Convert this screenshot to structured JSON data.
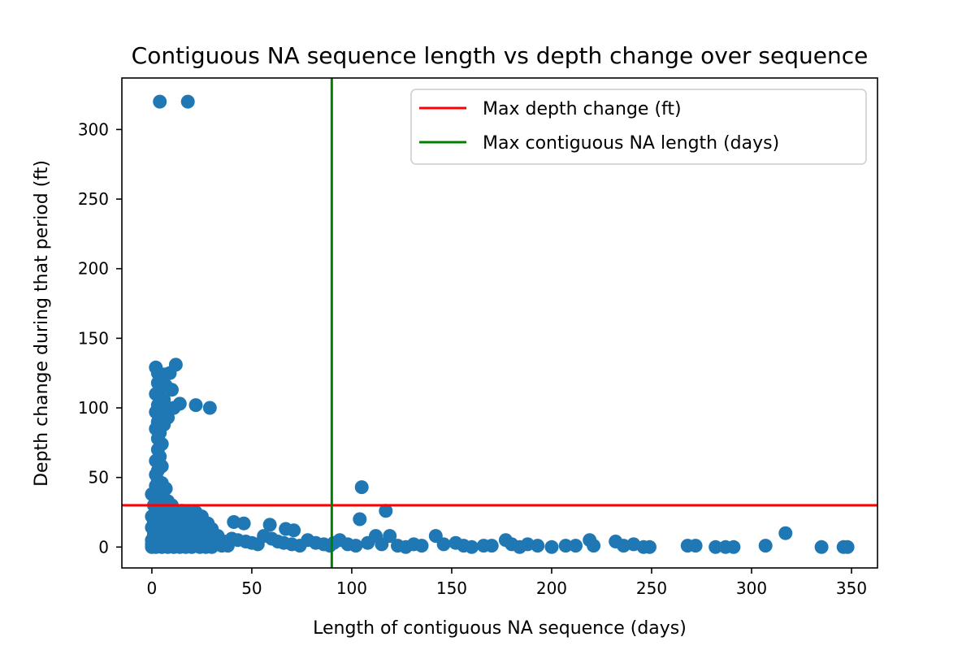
{
  "chart_data": {
    "type": "scatter",
    "title": "Contiguous NA sequence length vs depth change over sequence",
    "xlabel": "Length of contiguous NA sequence (days)",
    "ylabel": "Depth change during that period (ft)",
    "xlim": [
      -15,
      363
    ],
    "ylim": [
      -15,
      337
    ],
    "xticks": [
      0,
      50,
      100,
      150,
      200,
      250,
      300,
      350
    ],
    "yticks": [
      0,
      50,
      100,
      150,
      200,
      250,
      300
    ],
    "grid": false,
    "legend_position": "top-right",
    "colors": {
      "points": "#1f77b4",
      "hline": "#ff0000",
      "vline": "#008000"
    },
    "reference_lines": [
      {
        "orientation": "horizontal",
        "value": 30,
        "label": "Max depth change (ft)",
        "color": "#ff0000"
      },
      {
        "orientation": "vertical",
        "value": 90,
        "label": "Max contiguous NA length (days)",
        "color": "#008000"
      }
    ],
    "series": [
      {
        "points": [
          [
            4,
            320
          ],
          [
            18,
            320
          ],
          [
            2,
            129
          ],
          [
            12,
            131
          ],
          [
            3,
            125
          ],
          [
            6,
            124
          ],
          [
            9,
            125
          ],
          [
            3,
            118
          ],
          [
            7,
            116
          ],
          [
            10,
            113
          ],
          [
            2,
            110
          ],
          [
            4,
            108
          ],
          [
            6,
            106
          ],
          [
            3,
            102
          ],
          [
            8,
            100
          ],
          [
            11,
            100
          ],
          [
            14,
            103
          ],
          [
            22,
            102
          ],
          [
            29,
            100
          ],
          [
            2,
            97
          ],
          [
            5,
            96
          ],
          [
            8,
            93
          ],
          [
            3,
            90
          ],
          [
            6,
            88
          ],
          [
            2,
            85
          ],
          [
            4,
            82
          ],
          [
            3,
            78
          ],
          [
            5,
            74
          ],
          [
            3,
            70
          ],
          [
            4,
            65
          ],
          [
            2,
            62
          ],
          [
            5,
            58
          ],
          [
            3,
            55
          ],
          [
            2,
            52
          ],
          [
            3,
            48
          ],
          [
            5,
            46
          ],
          [
            2,
            44
          ],
          [
            7,
            42
          ],
          [
            4,
            40
          ],
          [
            3,
            36
          ],
          [
            5,
            34
          ],
          [
            8,
            33
          ],
          [
            10,
            30
          ],
          [
            2,
            28
          ],
          [
            6,
            27
          ],
          [
            12,
            26
          ],
          [
            15,
            26
          ],
          [
            18,
            25
          ],
          [
            22,
            25
          ],
          [
            3,
            24
          ],
          [
            9,
            23
          ],
          [
            13,
            22
          ],
          [
            20,
            22
          ],
          [
            25,
            22
          ],
          [
            1,
            20
          ],
          [
            4,
            20
          ],
          [
            7,
            19
          ],
          [
            11,
            18
          ],
          [
            16,
            18
          ],
          [
            19,
            18
          ],
          [
            24,
            17
          ],
          [
            28,
            17
          ],
          [
            2,
            16
          ],
          [
            5,
            15
          ],
          [
            9,
            15
          ],
          [
            14,
            15
          ],
          [
            18,
            14
          ],
          [
            22,
            14
          ],
          [
            26,
            13
          ],
          [
            30,
            13
          ],
          [
            1,
            12
          ],
          [
            3,
            11
          ],
          [
            6,
            11
          ],
          [
            10,
            10
          ],
          [
            13,
            10
          ],
          [
            17,
            10
          ],
          [
            21,
            9
          ],
          [
            25,
            9
          ],
          [
            29,
            8
          ],
          [
            33,
            8
          ],
          [
            1,
            7
          ],
          [
            4,
            6
          ],
          [
            8,
            6
          ],
          [
            12,
            6
          ],
          [
            16,
            5
          ],
          [
            20,
            5
          ],
          [
            24,
            5
          ],
          [
            28,
            4
          ],
          [
            32,
            4
          ],
          [
            36,
            4
          ],
          [
            1,
            3
          ],
          [
            3,
            3
          ],
          [
            6,
            2
          ],
          [
            9,
            2
          ],
          [
            12,
            2
          ],
          [
            15,
            1
          ],
          [
            18,
            1
          ],
          [
            21,
            1
          ],
          [
            24,
            0
          ],
          [
            27,
            0
          ],
          [
            30,
            0
          ],
          [
            2,
            0
          ],
          [
            5,
            0
          ],
          [
            8,
            0
          ],
          [
            11,
            0
          ],
          [
            14,
            0
          ],
          [
            17,
            0
          ],
          [
            20,
            0
          ],
          [
            23,
            1
          ],
          [
            26,
            2
          ],
          [
            29,
            3
          ],
          [
            32,
            2
          ],
          [
            35,
            1
          ],
          [
            38,
            1
          ],
          [
            41,
            18
          ],
          [
            46,
            17
          ],
          [
            59,
            16
          ],
          [
            67,
            13
          ],
          [
            71,
            12
          ],
          [
            40,
            6
          ],
          [
            43,
            5
          ],
          [
            47,
            4
          ],
          [
            50,
            3
          ],
          [
            53,
            2
          ],
          [
            56,
            8
          ],
          [
            60,
            6
          ],
          [
            63,
            4
          ],
          [
            66,
            3
          ],
          [
            70,
            2
          ],
          [
            74,
            1
          ],
          [
            78,
            5
          ],
          [
            82,
            3
          ],
          [
            86,
            2
          ],
          [
            89,
            1
          ],
          [
            91,
            3
          ],
          [
            94,
            5
          ],
          [
            98,
            2
          ],
          [
            102,
            1
          ],
          [
            105,
            43
          ],
          [
            104,
            20
          ],
          [
            117,
            26
          ],
          [
            112,
            8
          ],
          [
            119,
            8
          ],
          [
            108,
            3
          ],
          [
            115,
            2
          ],
          [
            123,
            1
          ],
          [
            127,
            0
          ],
          [
            131,
            2
          ],
          [
            135,
            1
          ],
          [
            142,
            8
          ],
          [
            146,
            2
          ],
          [
            152,
            3
          ],
          [
            156,
            1
          ],
          [
            160,
            0
          ],
          [
            166,
            1
          ],
          [
            170,
            1
          ],
          [
            177,
            5
          ],
          [
            180,
            2
          ],
          [
            184,
            0
          ],
          [
            188,
            2
          ],
          [
            193,
            1
          ],
          [
            200,
            0
          ],
          [
            207,
            1
          ],
          [
            212,
            1
          ],
          [
            219,
            5
          ],
          [
            221,
            1
          ],
          [
            232,
            4
          ],
          [
            236,
            1
          ],
          [
            241,
            2
          ],
          [
            246,
            0
          ],
          [
            249,
            0
          ],
          [
            268,
            1
          ],
          [
            272,
            1
          ],
          [
            282,
            0
          ],
          [
            287,
            0
          ],
          [
            291,
            0
          ],
          [
            307,
            1
          ],
          [
            317,
            10
          ],
          [
            335,
            0
          ],
          [
            346,
            0
          ],
          [
            348,
            0
          ],
          [
            0,
            0
          ],
          [
            0,
            2
          ],
          [
            0,
            5
          ],
          [
            1,
            9
          ],
          [
            0,
            14
          ],
          [
            1,
            18
          ],
          [
            0,
            22
          ],
          [
            2,
            26
          ],
          [
            1,
            30
          ],
          [
            2,
            34
          ],
          [
            0,
            38
          ],
          [
            1,
            4
          ]
        ]
      }
    ]
  }
}
